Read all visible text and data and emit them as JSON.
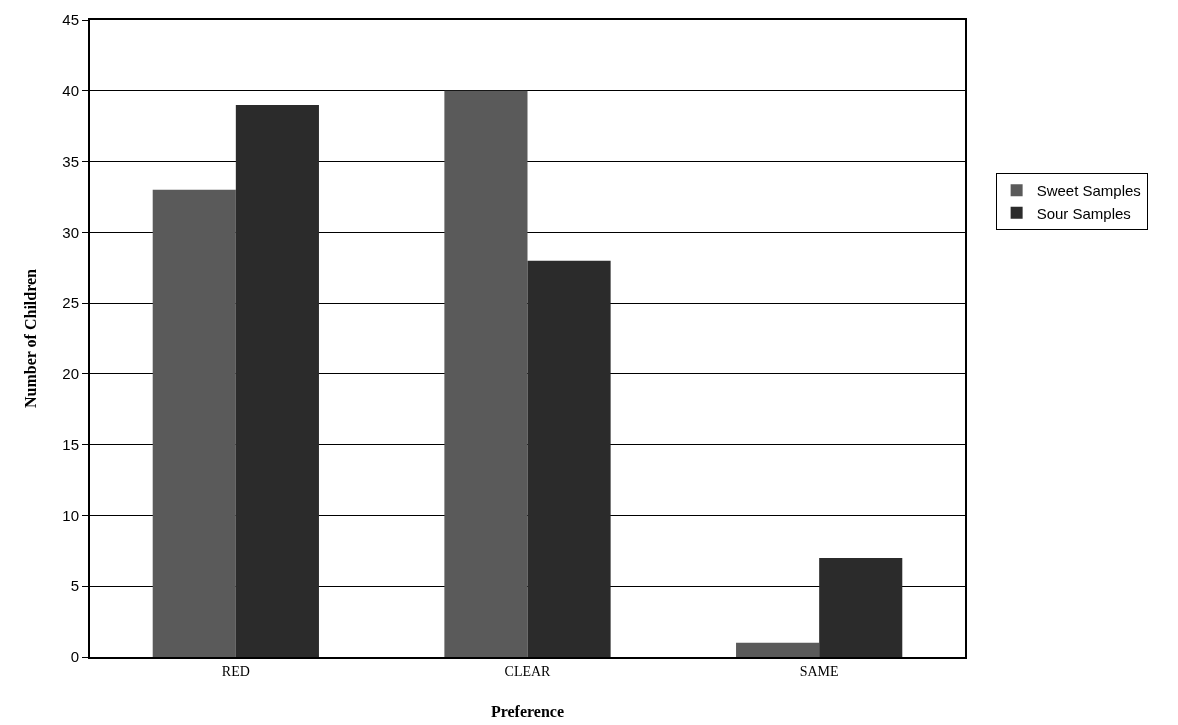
{
  "chart_data": {
    "type": "bar",
    "xlabel": "Preference",
    "ylabel": "Number of Children",
    "categories": [
      "RED",
      "CLEAR",
      "SAME"
    ],
    "series": [
      {
        "name": "Sweet Samples",
        "color": "#5a5a5a",
        "values": [
          33,
          40,
          1
        ]
      },
      {
        "name": "Sour Samples",
        "color": "#2b2b2b",
        "values": [
          39,
          28,
          7
        ]
      }
    ],
    "ylim": [
      0,
      45
    ],
    "yticks": [
      0,
      5,
      10,
      15,
      20,
      25,
      30,
      35,
      40,
      45
    ],
    "grid": "y",
    "legend": "right"
  }
}
